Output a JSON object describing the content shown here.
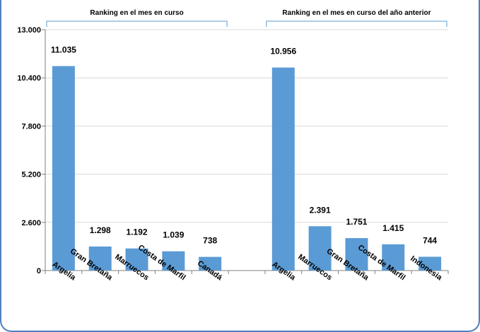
{
  "chart_data": {
    "type": "bar",
    "ylim": [
      0,
      13000
    ],
    "yticks": [
      0,
      2600,
      5200,
      7800,
      10400,
      13000
    ],
    "ytick_labels": [
      "0",
      "2.600",
      "5.200",
      "7.800",
      "10.400",
      "13.000"
    ],
    "grid": true,
    "color": "#5b9bd5",
    "groups": [
      {
        "title": "Ranking en el mes en curso",
        "categories": [
          "Argelia",
          "Gran Bretaña",
          "Marruecos",
          "Costa de Marfil",
          "Canadá"
        ],
        "values": [
          11035,
          1298,
          1192,
          1039,
          738
        ],
        "labels": [
          "11.035",
          "1.298",
          "1.192",
          "1.039",
          "738"
        ]
      },
      {
        "title": "Ranking en el mes en curso del año anterior",
        "categories": [
          "Argelia",
          "Marruecos",
          "Gran Bretaña",
          "Costa de Marfil",
          "Indonesia"
        ],
        "values": [
          10956,
          2391,
          1751,
          1415,
          744
        ],
        "labels": [
          "10.956",
          "2.391",
          "1.751",
          "1.415",
          "744"
        ]
      }
    ]
  }
}
